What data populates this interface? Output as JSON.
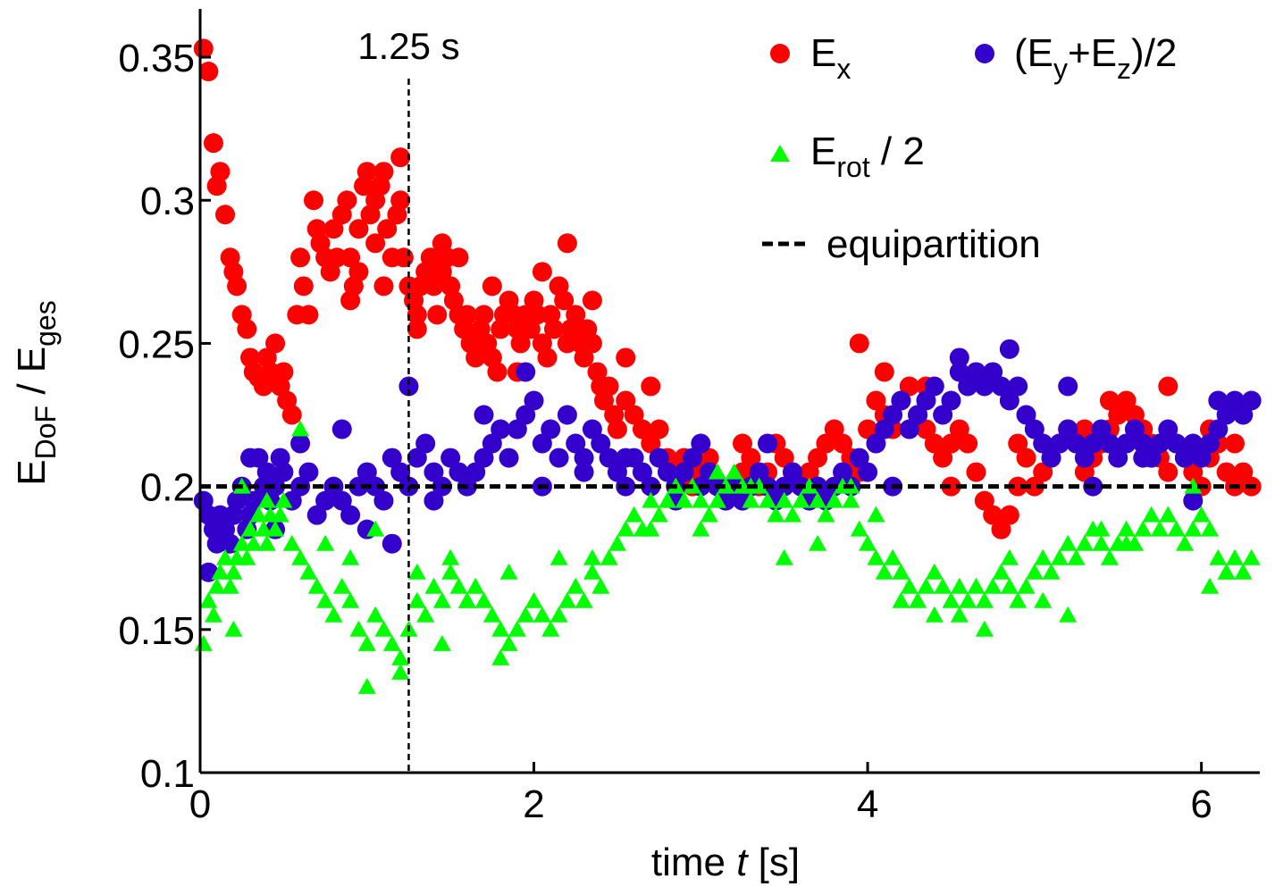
{
  "chart_data": {
    "type": "scatter",
    "xlabel": {
      "prefix": "time ",
      "var": "t",
      "suffix": " [s]"
    },
    "ylabel": {
      "main": "E",
      "sub": "DoF",
      "sep": " / ",
      "main2": "E",
      "sub2": "ges"
    },
    "xlim": [
      0,
      6.35
    ],
    "ylim": [
      0.1,
      0.36
    ],
    "xticks": [
      "0",
      "2",
      "4",
      "6"
    ],
    "yticks": [
      "0.1",
      "0.15",
      "0.2",
      "0.25",
      "0.3",
      "0.35"
    ],
    "grid": false,
    "legend_position": "top-right",
    "annotation": {
      "text": "1.25 s",
      "x": 1.25
    },
    "reference_line": {
      "name": "equipartition",
      "y": 0.2
    },
    "series": [
      {
        "name": "E_x",
        "label_main": "E",
        "label_sub": "x",
        "label_suffix": "",
        "marker": "circle",
        "color": "#ff0000",
        "x": [
          0.02,
          0.05,
          0.08,
          0.1,
          0.12,
          0.15,
          0.18,
          0.2,
          0.22,
          0.25,
          0.28,
          0.3,
          0.32,
          0.35,
          0.38,
          0.4,
          0.42,
          0.45,
          0.48,
          0.5,
          0.52,
          0.55,
          0.58,
          0.6,
          0.62,
          0.65,
          0.68,
          0.7,
          0.72,
          0.75,
          0.78,
          0.8,
          0.82,
          0.85,
          0.88,
          0.9,
          0.92,
          0.95,
          0.98,
          1.0,
          1.02,
          1.05,
          1.08,
          1.1,
          1.12,
          1.15,
          1.18,
          1.2,
          1.22,
          1.25,
          1.28,
          1.3,
          1.32,
          1.35,
          1.38,
          1.4,
          1.42,
          1.45,
          1.48,
          1.5,
          1.52,
          1.55,
          1.58,
          1.6,
          1.62,
          1.65,
          1.68,
          1.7,
          1.72,
          1.75,
          1.78,
          1.8,
          1.82,
          1.85,
          1.88,
          1.9,
          1.92,
          1.95,
          1.98,
          2.0,
          2.02,
          2.05,
          2.08,
          2.1,
          2.12,
          2.15,
          2.18,
          2.2,
          2.22,
          2.25,
          2.28,
          2.3,
          2.32,
          2.35,
          2.38,
          2.4,
          2.42,
          2.45,
          2.48,
          2.5,
          2.55,
          2.6,
          2.65,
          2.7,
          2.75,
          2.8,
          2.85,
          2.9,
          2.95,
          3.0,
          3.05,
          3.1,
          3.15,
          3.2,
          3.25,
          3.3,
          3.35,
          3.4,
          3.45,
          3.5,
          3.55,
          3.6,
          3.65,
          3.7,
          3.75,
          3.8,
          3.85,
          3.9,
          3.95,
          4.0,
          4.05,
          4.1,
          4.15,
          4.2,
          4.25,
          4.3,
          4.35,
          4.4,
          4.45,
          4.5,
          4.55,
          4.6,
          4.65,
          4.7,
          4.75,
          4.8,
          4.85,
          4.9,
          4.95,
          5.0,
          5.05,
          5.1,
          5.15,
          5.2,
          5.25,
          5.3,
          5.35,
          5.4,
          5.45,
          5.5,
          5.55,
          5.6,
          5.65,
          5.7,
          5.75,
          5.8,
          5.85,
          5.9,
          5.95,
          6.0,
          6.05,
          6.1,
          6.15,
          6.2,
          6.25,
          6.3
        ],
        "y": [
          0.353,
          0.345,
          0.32,
          0.305,
          0.31,
          0.295,
          0.28,
          0.275,
          0.27,
          0.26,
          0.255,
          0.245,
          0.24,
          0.238,
          0.235,
          0.245,
          0.24,
          0.25,
          0.235,
          0.24,
          0.23,
          0.225,
          0.26,
          0.28,
          0.27,
          0.26,
          0.3,
          0.29,
          0.285,
          0.28,
          0.275,
          0.29,
          0.28,
          0.295,
          0.3,
          0.28,
          0.27,
          0.29,
          0.305,
          0.31,
          0.295,
          0.3,
          0.305,
          0.31,
          0.29,
          0.28,
          0.295,
          0.3,
          0.28,
          0.27,
          0.265,
          0.26,
          0.27,
          0.275,
          0.28,
          0.27,
          0.26,
          0.275,
          0.28,
          0.27,
          0.265,
          0.26,
          0.255,
          0.26,
          0.25,
          0.245,
          0.255,
          0.26,
          0.25,
          0.245,
          0.24,
          0.255,
          0.26,
          0.265,
          0.26,
          0.255,
          0.25,
          0.26,
          0.255,
          0.265,
          0.26,
          0.25,
          0.245,
          0.26,
          0.255,
          0.27,
          0.265,
          0.25,
          0.255,
          0.26,
          0.25,
          0.245,
          0.255,
          0.25,
          0.24,
          0.235,
          0.23,
          0.235,
          0.225,
          0.22,
          0.23,
          0.225,
          0.22,
          0.215,
          0.22,
          0.21,
          0.205,
          0.21,
          0.2,
          0.205,
          0.21,
          0.2,
          0.195,
          0.2,
          0.205,
          0.21,
          0.2,
          0.205,
          0.215,
          0.21,
          0.205,
          0.2,
          0.205,
          0.21,
          0.215,
          0.22,
          0.215,
          0.21,
          0.205,
          0.22,
          0.23,
          0.225,
          0.22,
          0.23,
          0.235,
          0.225,
          0.22,
          0.215,
          0.21,
          0.215,
          0.22,
          0.215,
          0.205,
          0.195,
          0.19,
          0.185,
          0.19,
          0.2,
          0.21,
          0.2,
          0.205,
          0.21,
          0.215,
          0.22,
          0.215,
          0.205,
          0.21,
          0.215,
          0.22,
          0.225,
          0.23,
          0.225,
          0.22,
          0.215,
          0.21,
          0.205,
          0.215,
          0.21,
          0.205,
          0.2,
          0.21,
          0.215,
          0.205,
          0.2,
          0.205,
          0.2
        ],
        "extra": {
          "x": [
            0.9,
            0.95,
            1.05,
            1.1,
            1.2,
            1.3,
            1.45,
            1.55,
            1.75,
            1.9,
            2.05,
            2.2,
            2.35,
            2.55,
            2.7,
            3.25,
            3.95,
            4.1,
            4.35,
            4.5,
            4.9,
            5.3,
            5.45,
            5.8,
            6.05,
            6.2
          ],
          "y": [
            0.265,
            0.275,
            0.285,
            0.27,
            0.315,
            0.255,
            0.285,
            0.28,
            0.27,
            0.24,
            0.275,
            0.285,
            0.265,
            0.245,
            0.235,
            0.215,
            0.25,
            0.24,
            0.235,
            0.2,
            0.215,
            0.22,
            0.23,
            0.235,
            0.22,
            0.215
          ]
        }
      },
      {
        "name": "(E_y+E_z)/2",
        "label_main": "(E",
        "label_sub": "y",
        "label_mid": "+E",
        "label_sub2": "z",
        "label_suffix": ")/2",
        "marker": "circle",
        "color": "#3300cc",
        "x": [
          0.02,
          0.05,
          0.08,
          0.1,
          0.12,
          0.15,
          0.18,
          0.2,
          0.22,
          0.25,
          0.28,
          0.3,
          0.32,
          0.35,
          0.38,
          0.4,
          0.42,
          0.45,
          0.48,
          0.5,
          0.55,
          0.6,
          0.65,
          0.7,
          0.75,
          0.8,
          0.85,
          0.9,
          0.95,
          1.0,
          1.05,
          1.1,
          1.15,
          1.2,
          1.25,
          1.3,
          1.35,
          1.4,
          1.45,
          1.5,
          1.55,
          1.6,
          1.65,
          1.7,
          1.75,
          1.8,
          1.85,
          1.9,
          1.95,
          2.0,
          2.05,
          2.1,
          2.15,
          2.2,
          2.25,
          2.3,
          2.35,
          2.4,
          2.45,
          2.5,
          2.55,
          2.6,
          2.65,
          2.7,
          2.75,
          2.8,
          2.85,
          2.9,
          2.95,
          3.0,
          3.05,
          3.1,
          3.15,
          3.2,
          3.25,
          3.3,
          3.35,
          3.4,
          3.45,
          3.5,
          3.55,
          3.6,
          3.65,
          3.7,
          3.75,
          3.8,
          3.85,
          3.9,
          3.95,
          4.0,
          4.05,
          4.1,
          4.15,
          4.2,
          4.25,
          4.3,
          4.35,
          4.4,
          4.45,
          4.5,
          4.55,
          4.6,
          4.65,
          4.7,
          4.75,
          4.8,
          4.85,
          4.9,
          4.95,
          5.0,
          5.05,
          5.1,
          5.15,
          5.2,
          5.25,
          5.3,
          5.35,
          5.4,
          5.45,
          5.5,
          5.55,
          5.6,
          5.65,
          5.7,
          5.75,
          5.8,
          5.85,
          5.9,
          5.95,
          6.0,
          6.05,
          6.1,
          6.15,
          6.2,
          6.25,
          6.3
        ],
        "y": [
          0.195,
          0.19,
          0.185,
          0.18,
          0.19,
          0.185,
          0.18,
          0.19,
          0.195,
          0.2,
          0.185,
          0.19,
          0.195,
          0.21,
          0.2,
          0.205,
          0.195,
          0.2,
          0.21,
          0.205,
          0.195,
          0.2,
          0.205,
          0.19,
          0.195,
          0.2,
          0.195,
          0.19,
          0.2,
          0.205,
          0.2,
          0.195,
          0.21,
          0.205,
          0.2,
          0.21,
          0.215,
          0.205,
          0.2,
          0.21,
          0.205,
          0.2,
          0.205,
          0.21,
          0.215,
          0.22,
          0.21,
          0.22,
          0.225,
          0.23,
          0.215,
          0.22,
          0.21,
          0.225,
          0.215,
          0.21,
          0.22,
          0.215,
          0.21,
          0.205,
          0.2,
          0.21,
          0.205,
          0.2,
          0.21,
          0.205,
          0.2,
          0.205,
          0.21,
          0.2,
          0.205,
          0.2,
          0.195,
          0.2,
          0.195,
          0.2,
          0.205,
          0.2,
          0.195,
          0.2,
          0.205,
          0.2,
          0.195,
          0.2,
          0.195,
          0.2,
          0.205,
          0.2,
          0.21,
          0.205,
          0.215,
          0.22,
          0.225,
          0.23,
          0.22,
          0.225,
          0.23,
          0.235,
          0.225,
          0.23,
          0.24,
          0.235,
          0.24,
          0.235,
          0.24,
          0.235,
          0.23,
          0.235,
          0.225,
          0.22,
          0.215,
          0.21,
          0.215,
          0.22,
          0.215,
          0.21,
          0.215,
          0.22,
          0.215,
          0.21,
          0.215,
          0.22,
          0.215,
          0.21,
          0.215,
          0.22,
          0.215,
          0.21,
          0.215,
          0.21,
          0.215,
          0.22,
          0.225,
          0.23,
          0.225,
          0.23
        ],
        "extra": {
          "x": [
            0.05,
            0.3,
            0.45,
            0.6,
            0.85,
            1.0,
            1.15,
            1.25,
            1.4,
            1.7,
            1.95,
            2.05,
            2.3,
            2.55,
            2.85,
            3.0,
            3.4,
            3.7,
            4.15,
            4.55,
            4.85,
            5.2,
            5.35,
            5.65,
            5.95,
            6.1
          ],
          "y": [
            0.17,
            0.21,
            0.185,
            0.215,
            0.22,
            0.185,
            0.18,
            0.235,
            0.195,
            0.225,
            0.24,
            0.2,
            0.205,
            0.21,
            0.195,
            0.215,
            0.215,
            0.2,
            0.2,
            0.245,
            0.248,
            0.235,
            0.2,
            0.21,
            0.195,
            0.23
          ]
        }
      },
      {
        "name": "E_rot / 2",
        "label_main": "E",
        "label_sub": "rot",
        "label_suffix": " / 2",
        "marker": "triangle",
        "color": "#00ff00",
        "x": [
          0.02,
          0.05,
          0.08,
          0.1,
          0.12,
          0.15,
          0.18,
          0.2,
          0.22,
          0.25,
          0.28,
          0.3,
          0.32,
          0.35,
          0.38,
          0.4,
          0.42,
          0.45,
          0.48,
          0.5,
          0.55,
          0.6,
          0.65,
          0.7,
          0.75,
          0.8,
          0.85,
          0.9,
          0.95,
          1.0,
          1.05,
          1.1,
          1.15,
          1.2,
          1.25,
          1.3,
          1.35,
          1.4,
          1.45,
          1.5,
          1.55,
          1.6,
          1.65,
          1.7,
          1.75,
          1.8,
          1.85,
          1.9,
          1.95,
          2.0,
          2.05,
          2.1,
          2.15,
          2.2,
          2.25,
          2.3,
          2.35,
          2.4,
          2.45,
          2.5,
          2.55,
          2.6,
          2.65,
          2.7,
          2.75,
          2.8,
          2.85,
          2.9,
          2.95,
          3.0,
          3.05,
          3.1,
          3.15,
          3.2,
          3.25,
          3.3,
          3.35,
          3.4,
          3.45,
          3.5,
          3.55,
          3.6,
          3.65,
          3.7,
          3.75,
          3.8,
          3.85,
          3.9,
          3.95,
          4.0,
          4.05,
          4.1,
          4.15,
          4.2,
          4.25,
          4.3,
          4.35,
          4.4,
          4.45,
          4.5,
          4.55,
          4.6,
          4.65,
          4.7,
          4.75,
          4.8,
          4.85,
          4.9,
          4.95,
          5.0,
          5.05,
          5.1,
          5.15,
          5.2,
          5.25,
          5.3,
          5.35,
          5.4,
          5.45,
          5.5,
          5.55,
          5.6,
          5.65,
          5.7,
          5.75,
          5.8,
          5.85,
          5.9,
          5.95,
          6.0,
          6.05,
          6.1,
          6.15,
          6.2,
          6.25,
          6.3
        ],
        "y": [
          0.145,
          0.16,
          0.155,
          0.165,
          0.17,
          0.175,
          0.165,
          0.17,
          0.175,
          0.18,
          0.175,
          0.185,
          0.18,
          0.19,
          0.185,
          0.18,
          0.19,
          0.185,
          0.19,
          0.195,
          0.18,
          0.175,
          0.17,
          0.165,
          0.16,
          0.155,
          0.165,
          0.16,
          0.15,
          0.145,
          0.155,
          0.15,
          0.145,
          0.14,
          0.15,
          0.16,
          0.155,
          0.165,
          0.16,
          0.17,
          0.165,
          0.16,
          0.165,
          0.16,
          0.155,
          0.15,
          0.145,
          0.15,
          0.155,
          0.16,
          0.155,
          0.15,
          0.155,
          0.16,
          0.165,
          0.16,
          0.17,
          0.165,
          0.175,
          0.18,
          0.185,
          0.19,
          0.185,
          0.195,
          0.19,
          0.195,
          0.2,
          0.195,
          0.2,
          0.195,
          0.19,
          0.195,
          0.2,
          0.205,
          0.2,
          0.195,
          0.2,
          0.195,
          0.19,
          0.195,
          0.19,
          0.195,
          0.2,
          0.195,
          0.19,
          0.195,
          0.2,
          0.195,
          0.185,
          0.18,
          0.175,
          0.17,
          0.175,
          0.17,
          0.165,
          0.16,
          0.165,
          0.17,
          0.165,
          0.16,
          0.155,
          0.16,
          0.165,
          0.16,
          0.165,
          0.17,
          0.165,
          0.16,
          0.165,
          0.17,
          0.175,
          0.17,
          0.175,
          0.18,
          0.175,
          0.18,
          0.185,
          0.18,
          0.175,
          0.18,
          0.185,
          0.18,
          0.185,
          0.19,
          0.185,
          0.19,
          0.185,
          0.18,
          0.185,
          0.19,
          0.185,
          0.175,
          0.17,
          0.175,
          0.17,
          0.175
        ],
        "extra": {
          "x": [
            0.2,
            0.25,
            0.4,
            0.6,
            0.75,
            0.9,
            1.0,
            1.05,
            1.2,
            1.3,
            1.45,
            1.5,
            1.6,
            1.8,
            1.85,
            2.15,
            2.35,
            2.7,
            3.0,
            3.1,
            3.3,
            3.5,
            3.7,
            3.9,
            4.05,
            4.2,
            4.4,
            4.55,
            4.7,
            4.85,
            5.05,
            5.2,
            5.4,
            5.55,
            5.8,
            5.95,
            6.05,
            6.15
          ],
          "y": [
            0.15,
            0.2,
            0.195,
            0.22,
            0.18,
            0.175,
            0.13,
            0.185,
            0.135,
            0.17,
            0.145,
            0.175,
            0.16,
            0.14,
            0.17,
            0.175,
            0.175,
            0.185,
            0.185,
            0.205,
            0.2,
            0.175,
            0.18,
            0.2,
            0.19,
            0.16,
            0.155,
            0.165,
            0.15,
            0.175,
            0.16,
            0.155,
            0.185,
            0.18,
            0.19,
            0.2,
            0.165,
            0.17
          ]
        }
      }
    ]
  }
}
